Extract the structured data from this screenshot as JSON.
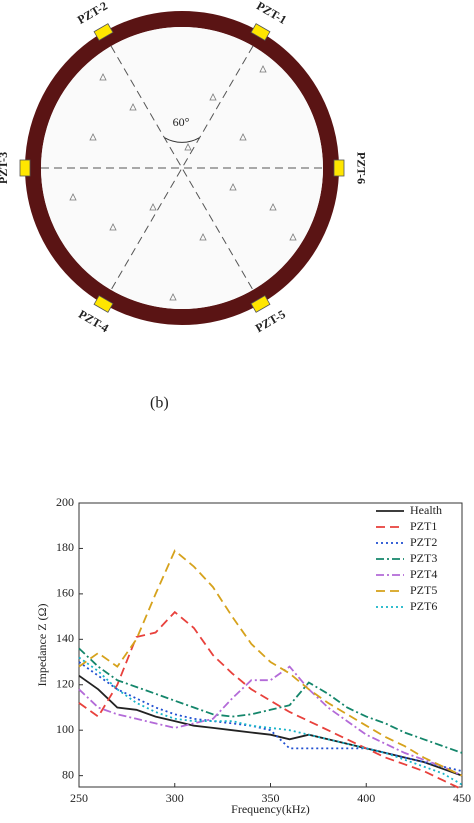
{
  "diagram": {
    "sensors": [
      "PZT-1",
      "PZT-2",
      "PZT-3",
      "PZT-4",
      "PZT-5",
      "PZT-6"
    ],
    "angle": "60°",
    "caption": "(b)"
  },
  "chart_data": {
    "type": "line",
    "xlabel": "Frequency(kHz)",
    "ylabel": "Impedance Z (Ω)",
    "x": [
      250,
      260,
      270,
      280,
      290,
      300,
      310,
      320,
      330,
      340,
      350,
      360,
      370,
      380,
      390,
      400,
      410,
      420,
      430,
      440,
      450
    ],
    "xlim": [
      250,
      450
    ],
    "xticks": [
      250,
      300,
      350,
      400,
      450
    ],
    "ylim": [
      75,
      200
    ],
    "yticks": [
      80,
      100,
      120,
      140,
      160,
      180,
      200
    ],
    "legend": "top-right",
    "series": [
      {
        "name": "Health",
        "color": "#222222",
        "style": "solid",
        "values": [
          124,
          118,
          110,
          109,
          106,
          104,
          102,
          101,
          100,
          99,
          98,
          96,
          98,
          96,
          94,
          92,
          90,
          88,
          86,
          83,
          80
        ]
      },
      {
        "name": "PZT1",
        "color": "#e8413c",
        "style": "dashed",
        "values": [
          112,
          106,
          120,
          141,
          143,
          152,
          145,
          133,
          125,
          118,
          113,
          108,
          104,
          100,
          96,
          92,
          88,
          85,
          82,
          78,
          74
        ]
      },
      {
        "name": "PZT2",
        "color": "#1f4fd1",
        "style": "dotted",
        "values": [
          130,
          124,
          118,
          114,
          110,
          107,
          105,
          104,
          103,
          102,
          100,
          92,
          92,
          92,
          92,
          92,
          90,
          88,
          86,
          84,
          82
        ]
      },
      {
        "name": "PZT3",
        "color": "#14866b",
        "style": "dashdot",
        "values": [
          136,
          128,
          122,
          119,
          116,
          113,
          110,
          107,
          106,
          107,
          109,
          111,
          121,
          116,
          110,
          106,
          103,
          99,
          96,
          93,
          90
        ]
      },
      {
        "name": "PZT4",
        "color": "#b36ad8",
        "style": "dashdot",
        "values": [
          118,
          110,
          107,
          105,
          103,
          101,
          103,
          105,
          114,
          122,
          122,
          128,
          118,
          110,
          104,
          98,
          94,
          90,
          87,
          84,
          80
        ]
      },
      {
        "name": "PZT5",
        "color": "#d6a21c",
        "style": "dashed",
        "values": [
          128,
          134,
          128,
          140,
          160,
          179,
          172,
          163,
          150,
          138,
          130,
          125,
          118,
          112,
          107,
          102,
          97,
          93,
          88,
          84,
          80
        ]
      },
      {
        "name": "PZT6",
        "color": "#18b4c8",
        "style": "dotted",
        "values": [
          132,
          126,
          118,
          112,
          108,
          105,
          104,
          104,
          104,
          102,
          101,
          100,
          98,
          96,
          94,
          92,
          90,
          87,
          84,
          81,
          76
        ]
      }
    ]
  }
}
